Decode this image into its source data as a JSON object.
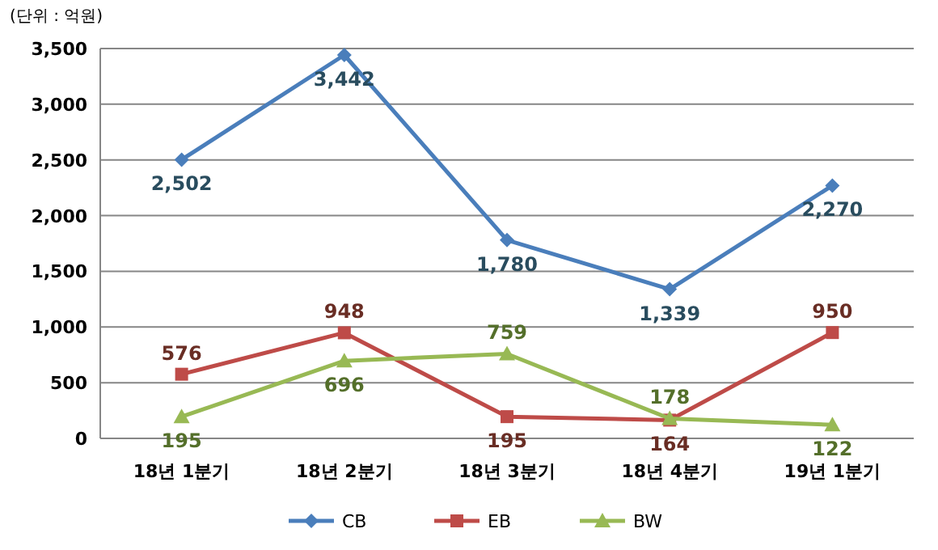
{
  "chart_data": {
    "type": "line",
    "annotations": [
      "(단위 : 억원)"
    ],
    "categories": [
      "18년 1분기",
      "18년 2분기",
      "18년 3분기",
      "18년 4분기",
      "19년 1분기"
    ],
    "series": [
      {
        "name": "CB",
        "color": "#4a7ebb",
        "marker": "diamond",
        "values": [
          2502,
          3442,
          1780,
          1339,
          2270
        ],
        "value_labels": [
          "2,502",
          "3,442",
          "1,780",
          "1,339",
          "2,270"
        ]
      },
      {
        "name": "EB",
        "color": "#be4b48",
        "marker": "square",
        "values": [
          576,
          948,
          195,
          164,
          950
        ],
        "value_labels": [
          "576",
          "948",
          "195",
          "164",
          "950"
        ]
      },
      {
        "name": "BW",
        "color": "#98b954",
        "marker": "triangle",
        "values": [
          195,
          696,
          759,
          178,
          122
        ],
        "value_labels": [
          "195",
          "696",
          "759",
          "178",
          "122"
        ]
      }
    ],
    "ylim": [
      0,
      3500
    ],
    "yticks": [
      {
        "value": 0,
        "label": "0"
      },
      {
        "value": 500,
        "label": "500"
      },
      {
        "value": 1000,
        "label": "1,000"
      },
      {
        "value": 1500,
        "label": "1,500"
      },
      {
        "value": 2000,
        "label": "2,000"
      },
      {
        "value": 2500,
        "label": "2,500"
      },
      {
        "value": 3000,
        "label": "3,000"
      },
      {
        "value": 3500,
        "label": "3,500"
      }
    ],
    "grid": "y",
    "legend": "bottom",
    "line_style": "solid"
  }
}
